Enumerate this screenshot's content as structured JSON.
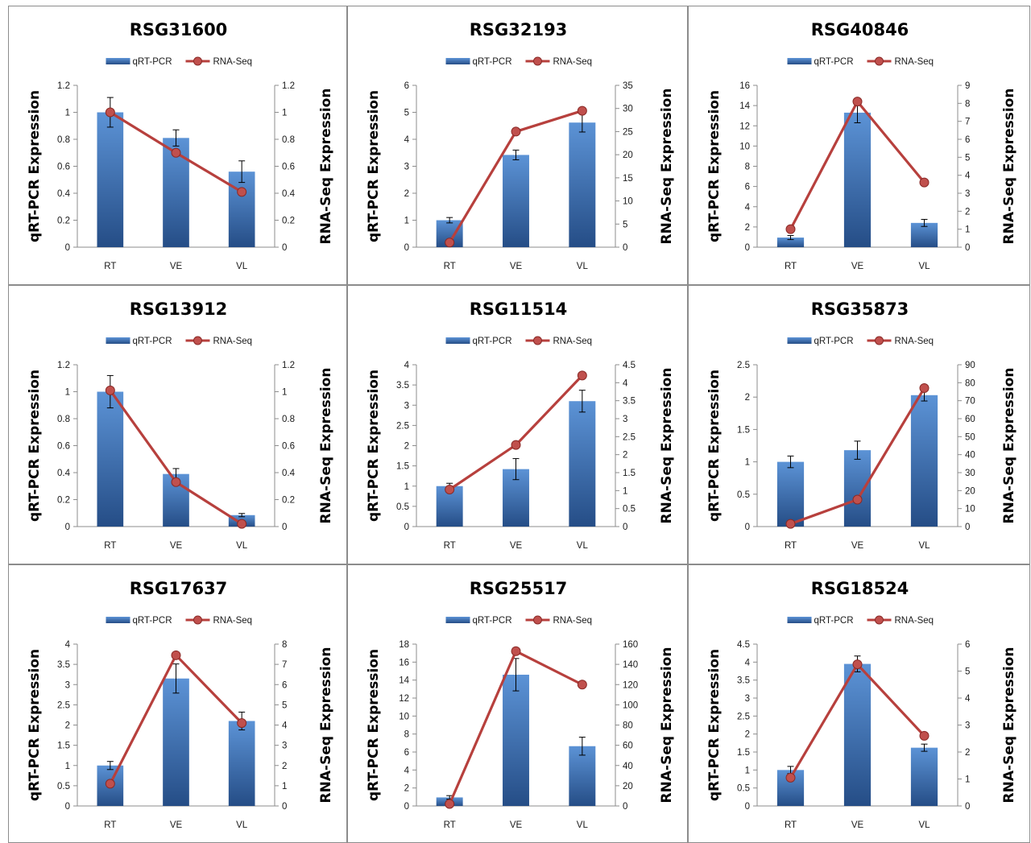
{
  "colors": {
    "bar_top": "#5c93d6",
    "bar_bottom": "#254d86",
    "line": "#b7403d",
    "marker": "#c0504d",
    "frame": "#8c8c8c"
  },
  "chart_data": [
    {
      "type": "bar",
      "title": "RSG31600",
      "categories": [
        "RT",
        "VE",
        "VL"
      ],
      "ylabel": "qRT-PCR Expression",
      "y2label": "RNA-Seq Expression",
      "ylim": [
        0,
        1.2
      ],
      "yticks": [
        "0",
        "0.2",
        "0.4",
        "0.6",
        "0.8",
        "1",
        "1.2"
      ],
      "y2lim": [
        0,
        1.2
      ],
      "y2ticks": [
        "0",
        "0.2",
        "0.4",
        "0.6",
        "0.8",
        "1",
        "1.2"
      ],
      "legend": "top",
      "series": [
        {
          "name": "qRT-PCR",
          "values": [
            1.0,
            0.81,
            0.56
          ],
          "errors": [
            0.11,
            0.06,
            0.08
          ]
        },
        {
          "name": "RNA-Seq",
          "values": [
            1.0,
            0.7,
            0.41
          ]
        }
      ]
    },
    {
      "type": "bar",
      "title": "RSG32193",
      "categories": [
        "RT",
        "VE",
        "VL"
      ],
      "ylabel": "qRT-PCR Expression",
      "y2label": "RNA-Seq Expression",
      "ylim": [
        0,
        6
      ],
      "yticks": [
        "0",
        "1",
        "2",
        "3",
        "4",
        "5",
        "6"
      ],
      "y2lim": [
        0,
        35
      ],
      "y2ticks": [
        "0",
        "5",
        "10",
        "15",
        "20",
        "25",
        "30",
        "35"
      ],
      "legend": "top",
      "series": [
        {
          "name": "qRT-PCR",
          "values": [
            1.0,
            3.42,
            4.62
          ],
          "errors": [
            0.1,
            0.18,
            0.35
          ]
        },
        {
          "name": "RNA-Seq",
          "values": [
            1.0,
            25.0,
            29.5
          ]
        }
      ]
    },
    {
      "type": "bar",
      "title": "RSG40846",
      "categories": [
        "RT",
        "VE",
        "VL"
      ],
      "ylabel": "qRT-PCR Expression",
      "y2label": "RNA-Seq Expression",
      "ylim": [
        0,
        16
      ],
      "yticks": [
        "0",
        "2",
        "4",
        "6",
        "8",
        "10",
        "12",
        "14",
        "16"
      ],
      "y2lim": [
        0,
        9
      ],
      "y2ticks": [
        "0",
        "1",
        "2",
        "3",
        "4",
        "5",
        "6",
        "7",
        "8",
        "9"
      ],
      "legend": "top",
      "series": [
        {
          "name": "qRT-PCR",
          "values": [
            0.95,
            13.3,
            2.4
          ],
          "errors": [
            0.2,
            1.0,
            0.35
          ]
        },
        {
          "name": "RNA-Seq",
          "values": [
            1.0,
            8.1,
            3.6
          ]
        }
      ]
    },
    {
      "type": "bar",
      "title": "RSG13912",
      "categories": [
        "RT",
        "VE",
        "VL"
      ],
      "ylabel": "qRT-PCR Expression",
      "y2label": "RNA-Seq Expression",
      "ylim": [
        0,
        1.2
      ],
      "yticks": [
        "0",
        "0.2",
        "0.4",
        "0.6",
        "0.8",
        "1",
        "1.2"
      ],
      "y2lim": [
        0,
        1.2
      ],
      "y2ticks": [
        "0",
        "0.2",
        "0.4",
        "0.6",
        "0.8",
        "1",
        "1.2"
      ],
      "legend": "top",
      "series": [
        {
          "name": "qRT-PCR",
          "values": [
            1.0,
            0.39,
            0.085
          ],
          "errors": [
            0.12,
            0.04,
            0.012
          ]
        },
        {
          "name": "RNA-Seq",
          "values": [
            1.01,
            0.33,
            0.02
          ]
        }
      ]
    },
    {
      "type": "bar",
      "title": "RSG11514",
      "categories": [
        "RT",
        "VE",
        "VL"
      ],
      "ylabel": "qRT-PCR Expression",
      "y2label": "RNA-Seq Expression",
      "ylim": [
        0,
        4
      ],
      "yticks": [
        "0",
        "0.5",
        "1",
        "1.5",
        "2",
        "2.5",
        "3",
        "3.5",
        "4"
      ],
      "y2lim": [
        0,
        4.5
      ],
      "y2ticks": [
        "0",
        "0.5",
        "1",
        "1.5",
        "2",
        "2.5",
        "3",
        "3.5",
        "4",
        "4.5"
      ],
      "legend": "top",
      "series": [
        {
          "name": "qRT-PCR",
          "values": [
            1.0,
            1.42,
            3.1
          ],
          "errors": [
            0.07,
            0.26,
            0.27
          ]
        },
        {
          "name": "RNA-Seq",
          "values": [
            1.03,
            2.27,
            4.2
          ]
        }
      ]
    },
    {
      "type": "bar",
      "title": "RSG35873",
      "categories": [
        "RT",
        "VE",
        "VL"
      ],
      "ylabel": "qRT-PCR Expression",
      "y2label": "RNA-Seq Expression",
      "ylim": [
        0,
        2.5
      ],
      "yticks": [
        "0",
        "0.5",
        "1",
        "1.5",
        "2",
        "2.5"
      ],
      "y2lim": [
        0,
        90
      ],
      "y2ticks": [
        "0",
        "10",
        "20",
        "30",
        "40",
        "50",
        "60",
        "70",
        "80",
        "90"
      ],
      "legend": "top",
      "series": [
        {
          "name": "qRT-PCR",
          "values": [
            1.0,
            1.18,
            2.03
          ],
          "errors": [
            0.09,
            0.14,
            0.09
          ]
        },
        {
          "name": "RNA-Seq",
          "values": [
            1.5,
            15.0,
            77.0
          ]
        }
      ]
    },
    {
      "type": "bar",
      "title": "RSG17637",
      "categories": [
        "RT",
        "VE",
        "VL"
      ],
      "ylabel": "qRT-PCR Expression",
      "y2label": "RNA-Seq Expression",
      "ylim": [
        0,
        4
      ],
      "yticks": [
        "0",
        "0.5",
        "1",
        "1.5",
        "2",
        "2.5",
        "3",
        "3.5",
        "4"
      ],
      "y2lim": [
        0,
        8
      ],
      "y2ticks": [
        "0",
        "1",
        "2",
        "3",
        "4",
        "5",
        "6",
        "7",
        "8"
      ],
      "legend": "top",
      "series": [
        {
          "name": "qRT-PCR",
          "values": [
            1.0,
            3.15,
            2.1
          ],
          "errors": [
            0.1,
            0.36,
            0.22
          ]
        },
        {
          "name": "RNA-Seq",
          "values": [
            1.1,
            7.45,
            4.1
          ]
        }
      ]
    },
    {
      "type": "bar",
      "title": "RSG25517",
      "categories": [
        "RT",
        "VE",
        "VL"
      ],
      "ylabel": "qRT-PCR Expression",
      "y2label": "RNA-Seq Expression",
      "ylim": [
        0,
        18
      ],
      "yticks": [
        "0",
        "2",
        "4",
        "6",
        "8",
        "10",
        "12",
        "14",
        "16",
        "18"
      ],
      "y2lim": [
        0,
        160
      ],
      "y2ticks": [
        "0",
        "20",
        "40",
        "60",
        "80",
        "100",
        "120",
        "140",
        "160"
      ],
      "legend": "top",
      "series": [
        {
          "name": "qRT-PCR",
          "values": [
            0.95,
            14.6,
            6.65
          ],
          "errors": [
            0.2,
            1.8,
            1.0
          ]
        },
        {
          "name": "RNA-Seq",
          "values": [
            2.0,
            153.0,
            120.0
          ]
        }
      ]
    },
    {
      "type": "bar",
      "title": "RSG18524",
      "categories": [
        "RT",
        "VE",
        "VL"
      ],
      "ylabel": "qRT-PCR Expression",
      "y2label": "RNA-Seq Expression",
      "ylim": [
        0,
        4.5
      ],
      "yticks": [
        "0",
        "0.5",
        "1",
        "1.5",
        "2",
        "2.5",
        "3",
        "3.5",
        "4",
        "4.5"
      ],
      "y2lim": [
        0,
        6
      ],
      "y2ticks": [
        "0",
        "1",
        "2",
        "3",
        "4",
        "5",
        "6"
      ],
      "legend": "top",
      "series": [
        {
          "name": "qRT-PCR",
          "values": [
            1.0,
            3.95,
            1.62
          ],
          "errors": [
            0.1,
            0.22,
            0.1
          ]
        },
        {
          "name": "RNA-Seq",
          "values": [
            1.05,
            5.25,
            2.6
          ]
        }
      ]
    }
  ]
}
